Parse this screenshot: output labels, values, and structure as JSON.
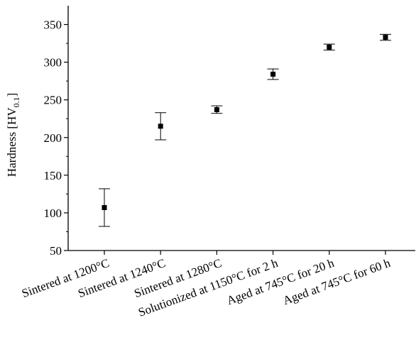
{
  "chart_data": {
    "type": "scatter",
    "title": "",
    "xlabel": "",
    "ylabel": {
      "main": "Hardness [HV",
      "subscript": "0.1",
      "close": "]"
    },
    "categories": [
      "Sintered at 1200°C",
      "Sintered at 1240°C",
      "Sintered at 1280°C",
      "Solutionized at 1150°C for 2 h",
      "Aged at 745°C for 20 h",
      "Aged at 745°C for 60 h"
    ],
    "series": [
      {
        "values": [
          107,
          215,
          237,
          284,
          320,
          333
        ],
        "error_low": [
          82,
          197,
          232,
          277,
          316,
          329
        ],
        "error_high": [
          132,
          233,
          242,
          291,
          324,
          337
        ]
      }
    ],
    "ylim": [
      50,
      375
    ],
    "yticks": [
      50,
      100,
      150,
      200,
      250,
      300,
      350
    ],
    "ytick_labels": [
      "50",
      "100",
      "150",
      "200",
      "250",
      "300",
      "350"
    ],
    "grid": false,
    "legend": "none",
    "marker": "square",
    "colors": {
      "marker": "#000000",
      "axis": "#000000"
    }
  }
}
